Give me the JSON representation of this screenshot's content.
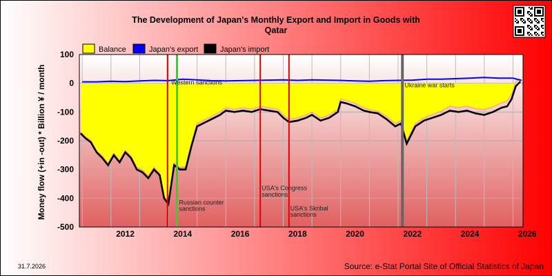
{
  "chart_data": {
    "type": "area",
    "title_line1": "The Development of Japan's Monthly Export and Import in Goods with",
    "title_line2": "Qatar",
    "ylabel": "Money flow (+in -out) * Billion ¥ / month",
    "xlabel": "",
    "ylim": [
      -500,
      100
    ],
    "xlim": [
      2010.9,
      2026.35
    ],
    "yticks": [
      100,
      0,
      -100,
      -200,
      -300,
      -400,
      -500
    ],
    "xticks": [
      2012,
      2014,
      2016,
      2018,
      2020,
      2022,
      2024,
      2026
    ],
    "grid": true,
    "legend_position": "top-left",
    "legend": [
      "Balance",
      "Japan's export",
      "Japan's import"
    ],
    "colors": {
      "balance": "#ffff00",
      "export": "#0000ff",
      "import": "#000000",
      "sanction_red": "#dd0000",
      "sanction_green": "#22dd22",
      "war": "#666666",
      "bg_left": "#ffffff",
      "bg_right": "#ff0000"
    },
    "series": [
      {
        "name": "Japan's export",
        "x": [
          2011.0,
          2011.5,
          2012.0,
          2012.5,
          2013.0,
          2013.5,
          2014.0,
          2014.5,
          2015.0,
          2015.5,
          2016.0,
          2016.5,
          2017.0,
          2017.5,
          2018.0,
          2018.5,
          2019.0,
          2019.5,
          2020.0,
          2020.5,
          2021.0,
          2021.5,
          2022.0,
          2022.5,
          2023.0,
          2023.5,
          2024.0,
          2024.5,
          2025.0,
          2025.5,
          2026.0,
          2026.3
        ],
        "values": [
          5,
          5,
          7,
          6,
          8,
          10,
          9,
          14,
          12,
          9,
          8,
          9,
          10,
          11,
          12,
          10,
          12,
          11,
          10,
          8,
          7,
          9,
          10,
          11,
          14,
          14,
          16,
          18,
          20,
          18,
          18,
          10
        ]
      },
      {
        "name": "Japan's import",
        "x": [
          2010.95,
          2011.1,
          2011.3,
          2011.5,
          2011.7,
          2011.9,
          2012.1,
          2012.3,
          2012.5,
          2012.7,
          2012.9,
          2013.1,
          2013.3,
          2013.5,
          2013.7,
          2013.85,
          2014.0,
          2014.2,
          2014.4,
          2014.6,
          2014.8,
          2015.0,
          2015.2,
          2015.5,
          2015.8,
          2016.0,
          2016.3,
          2016.6,
          2016.9,
          2017.2,
          2017.5,
          2017.8,
          2018.0,
          2018.2,
          2018.5,
          2018.8,
          2019.0,
          2019.3,
          2019.6,
          2019.9,
          2020.0,
          2020.2,
          2020.5,
          2020.8,
          2021.0,
          2021.3,
          2021.6,
          2021.9,
          2022.1,
          2022.3,
          2022.6,
          2022.9,
          2023.2,
          2023.5,
          2023.8,
          2024.1,
          2024.4,
          2024.7,
          2025.0,
          2025.3,
          2025.6,
          2025.8,
          2025.95,
          2026.1,
          2026.25
        ],
        "values": [
          -175,
          -190,
          -205,
          -240,
          -260,
          -285,
          -250,
          -275,
          -240,
          -260,
          -300,
          -310,
          -330,
          -300,
          -320,
          -400,
          -420,
          -285,
          -300,
          -300,
          -220,
          -150,
          -140,
          -125,
          -110,
          -95,
          -100,
          -95,
          -100,
          -90,
          -95,
          -100,
          -120,
          -135,
          -130,
          -120,
          -110,
          -130,
          -120,
          -100,
          -65,
          -70,
          -80,
          -95,
          -100,
          -105,
          -125,
          -150,
          -140,
          -210,
          -150,
          -130,
          -120,
          -110,
          -95,
          -100,
          -95,
          -105,
          -110,
          -100,
          -85,
          -80,
          -55,
          -10,
          5
        ]
      },
      {
        "name": "Balance",
        "x": [
          2010.95,
          2011.1,
          2011.3,
          2011.5,
          2011.7,
          2011.9,
          2012.1,
          2012.3,
          2012.5,
          2012.7,
          2012.9,
          2013.1,
          2013.3,
          2013.5,
          2013.7,
          2013.85,
          2014.0,
          2014.2,
          2014.4,
          2014.6,
          2014.8,
          2015.0,
          2015.2,
          2015.5,
          2015.8,
          2016.0,
          2016.3,
          2016.6,
          2016.9,
          2017.2,
          2017.5,
          2017.8,
          2018.0,
          2018.2,
          2018.5,
          2018.8,
          2019.0,
          2019.3,
          2019.6,
          2019.9,
          2020.0,
          2020.2,
          2020.5,
          2020.8,
          2021.0,
          2021.3,
          2021.6,
          2021.9,
          2022.1,
          2022.3,
          2022.6,
          2022.9,
          2023.2,
          2023.5,
          2023.8,
          2024.1,
          2024.4,
          2024.7,
          2025.0,
          2025.3,
          2025.6,
          2025.8,
          2025.95,
          2026.1,
          2026.25
        ],
        "values": [
          -170,
          -185,
          -198,
          -235,
          -252,
          -278,
          -243,
          -268,
          -233,
          -253,
          -292,
          -302,
          -322,
          -292,
          -312,
          -392,
          -412,
          -277,
          -292,
          -290,
          -210,
          -140,
          -130,
          -115,
          -100,
          -85,
          -90,
          -85,
          -90,
          -80,
          -85,
          -90,
          -110,
          -125,
          -120,
          -110,
          -100,
          -120,
          -110,
          -90,
          -55,
          -60,
          -70,
          -85,
          -92,
          -97,
          -115,
          -140,
          -130,
          -200,
          -140,
          -120,
          -108,
          -97,
          -80,
          -85,
          -80,
          -88,
          -92,
          -82,
          -68,
          -62,
          -38,
          5,
          15
        ]
      }
    ],
    "events": [
      {
        "x": 2013.97,
        "type": "sanction",
        "label": ""
      },
      {
        "x": 2014.3,
        "type": "sanction_green",
        "label": "Russian counter sanctions",
        "label_line1": "Russian counter",
        "label_line2": "sanctions"
      },
      {
        "x": 2014.1,
        "type": "text_only",
        "label": "Western sanctions"
      },
      {
        "x": 2017.2,
        "type": "sanction",
        "label": "USA's Congress sanctions",
        "label_line1": "USA's Congress",
        "label_line2": "sanctions"
      },
      {
        "x": 2018.2,
        "type": "sanction",
        "label": "USA's Skribal sanctions",
        "label_line1": "USA's Skribal",
        "label_line2": "sanctions"
      },
      {
        "x": 2022.15,
        "type": "war",
        "label": "Ukraine war starts"
      }
    ]
  },
  "date_stamp": "31.7.2026",
  "source": "Source: e-Stat Portal Site of Official Statistics of Japan",
  "qr_label": "QR code"
}
